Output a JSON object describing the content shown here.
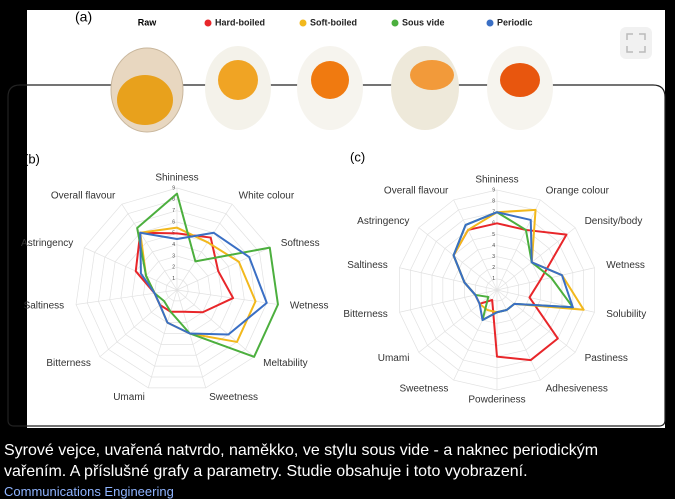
{
  "panel_labels": [
    "(a)",
    "(b)",
    "(c)"
  ],
  "raw_label": "Raw",
  "caption": [
    "Syrové vejce, uvařená natvrdo, naměkko, ve stylu sous vide - a naknec periodickým",
    "vařením. A příslušné grafy a parametry. Studie obsahuje i toto vyobrazení."
  ],
  "source": "Communications Engineering",
  "chart_data": [
    {
      "type": "radar",
      "categories": [
        "Shininess",
        "White colour",
        "Softness",
        "Wetness",
        "Meltability",
        "Sweetness",
        "Umami",
        "Bitterness",
        "Saltiness",
        "Astringency",
        "Overall flavour"
      ],
      "rlim": [
        0,
        9
      ],
      "rticks": [
        1,
        2,
        3,
        4,
        5,
        6,
        7,
        8,
        9
      ],
      "series": [
        {
          "name": "Hard-boiled",
          "color": "#e8262a",
          "values": [
            5,
            5.5,
            4,
            5,
            3,
            2,
            2,
            2,
            2,
            4,
            6
          ]
        },
        {
          "name": "Soft-boiled",
          "color": "#f2b81c",
          "values": [
            5.5,
            5,
            6,
            7,
            7,
            4,
            3,
            2,
            2,
            3,
            6
          ]
        },
        {
          "name": "Sous vide",
          "color": "#4caf3e",
          "values": [
            8.5,
            3,
            9,
            9,
            9,
            4,
            2,
            1.5,
            2,
            3,
            6.5
          ]
        },
        {
          "name": "Periodic",
          "color": "#3a6fc4",
          "values": [
            4.5,
            6,
            7,
            8,
            6,
            4,
            3,
            2,
            2,
            3.5,
            6
          ]
        }
      ]
    },
    {
      "type": "radar",
      "categories": [
        "Shininess",
        "Orange colour",
        "Density/body",
        "Wetness",
        "Solubility",
        "Pastiness",
        "Adhesiveness",
        "Powderiness",
        "Sweetness",
        "Umami",
        "Bitterness",
        "Saltiness",
        "Astringency",
        "Overall flavour"
      ],
      "rlim": [
        0,
        9
      ],
      "rticks": [
        1,
        2,
        3,
        4,
        5,
        6,
        7,
        8,
        9
      ],
      "series": [
        {
          "name": "Hard-boiled",
          "color": "#e8262a",
          "values": [
            6,
            6,
            8,
            4,
            3,
            7,
            7,
            6,
            1,
            2,
            2,
            3,
            5,
            6
          ]
        },
        {
          "name": "Soft-boiled",
          "color": "#f2b81c",
          "values": [
            7,
            8,
            4,
            6,
            8,
            2,
            2,
            2,
            2,
            2,
            2,
            3,
            5,
            6
          ]
        },
        {
          "name": "Sous vide",
          "color": "#4caf3e",
          "values": [
            7,
            6,
            4,
            5,
            7,
            2,
            2,
            2,
            3,
            1,
            2,
            3,
            5,
            6.5
          ]
        },
        {
          "name": "Periodic",
          "color": "#3a6fc4",
          "values": [
            7,
            7,
            4,
            6,
            7,
            2,
            2,
            2,
            3,
            2,
            2,
            3,
            5,
            6.5
          ]
        }
      ]
    }
  ]
}
